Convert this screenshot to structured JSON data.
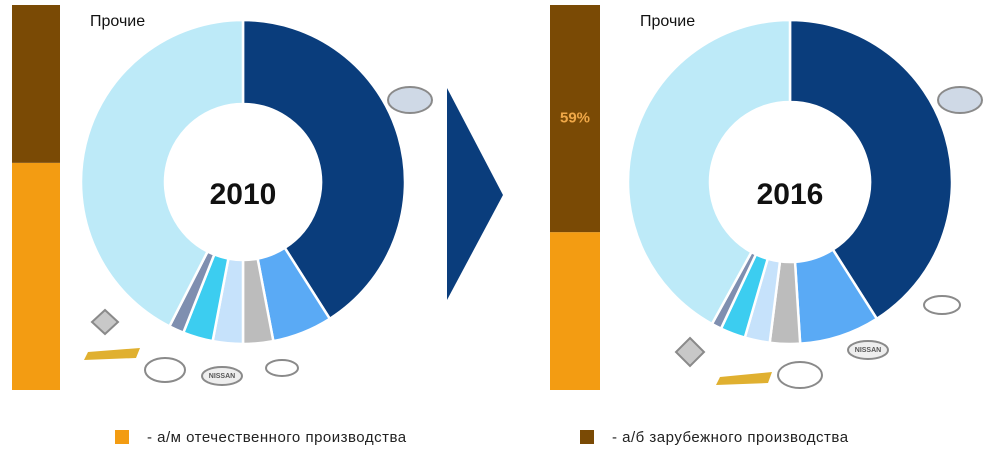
{
  "chart_data": [
    {
      "type": "bar",
      "categories": [
        null
      ],
      "stacked": true,
      "ylim": [
        0,
        100
      ],
      "series": [
        {
          "name": "- а/м отечественного производства",
          "color": "#f39c12",
          "values": [
            59
          ]
        },
        {
          "name": "- а/б зарубежного производства",
          "color": "#7a4a05",
          "values": [
            41
          ]
        }
      ]
    },
    {
      "type": "donut",
      "title": "2010",
      "categories": [
        null,
        null,
        null,
        null,
        null,
        null,
        "Прочие"
      ],
      "values": [
        41,
        6,
        3,
        3,
        3,
        1.5,
        42.5
      ],
      "colors": [
        "#0a3d7c",
        "#5aaaf5",
        "#bcbcbc",
        "#c6e2fb",
        "#3ccdf0",
        "#7f8fb0",
        "#bdeaf8"
      ],
      "annotations": [
        "NISSAN"
      ]
    },
    {
      "type": "bar",
      "categories": [
        null
      ],
      "stacked": true,
      "ylim": [
        0,
        100
      ],
      "series": [
        {
          "color": "#f39c12",
          "values": [
            41
          ]
        },
        {
          "color": "#7a4a05",
          "values": [
            59
          ],
          "value_labels": [
            "59%"
          ]
        }
      ]
    },
    {
      "type": "donut",
      "title": "2016",
      "categories": [
        null,
        null,
        null,
        null,
        null,
        null,
        "Прочие"
      ],
      "values": [
        41,
        8,
        3,
        2.5,
        2.5,
        1,
        42
      ],
      "colors": [
        "#0a3d7c",
        "#5aaaf5",
        "#bcbcbc",
        "#c6e2fb",
        "#3ccdf0",
        "#7f8fb0",
        "#bdeaf8"
      ],
      "annotations": [
        "NISSAN"
      ]
    }
  ]
}
